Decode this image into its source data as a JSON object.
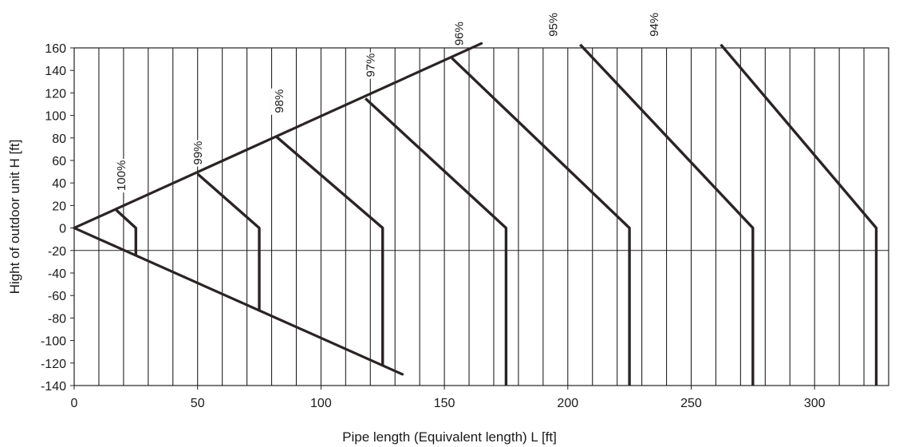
{
  "chart_data": {
    "type": "line",
    "title": "",
    "xlabel": "Pipe length (Equivalent length) L [ft]",
    "ylabel": "Hight of outdoor unit H [ft]",
    "xlim": [
      0,
      330
    ],
    "ylim": [
      -140,
      160
    ],
    "x_ticks": [
      "0",
      "50",
      "100",
      "150",
      "200",
      "250",
      "300"
    ],
    "y_ticks": [
      "160",
      "140",
      "120",
      "100",
      "80",
      "60",
      "40",
      "20",
      "0",
      "-20",
      "-40",
      "-60",
      "-80",
      "-100",
      "-120",
      "-140"
    ],
    "grid": {
      "vertical_every": 10,
      "horizontal_every": 20
    },
    "boundary": {
      "upper": [
        [
          0,
          0
        ],
        [
          165,
          164
        ]
      ],
      "lower": [
        [
          0,
          0
        ],
        [
          133,
          -130
        ]
      ]
    },
    "series": [
      {
        "name": "100%",
        "points": [
          [
            17,
            16
          ],
          [
            25,
            0
          ],
          [
            25,
            -24
          ]
        ]
      },
      {
        "name": "99%",
        "points": [
          [
            50,
            48
          ],
          [
            75,
            0
          ],
          [
            75,
            -74
          ]
        ]
      },
      {
        "name": "98%",
        "points": [
          [
            82,
            81
          ],
          [
            125,
            0
          ],
          [
            125,
            -122
          ]
        ]
      },
      {
        "name": "97%",
        "points": [
          [
            118,
            115
          ],
          [
            175,
            0
          ],
          [
            175,
            -140
          ]
        ]
      },
      {
        "name": "96%",
        "points": [
          [
            153,
            151
          ],
          [
            225,
            0
          ],
          [
            225,
            -140
          ]
        ]
      },
      {
        "name": "95%",
        "points": [
          [
            205,
            163
          ],
          [
            275,
            0
          ],
          [
            275,
            -140
          ]
        ]
      },
      {
        "name": "94%",
        "points": [
          [
            262,
            163
          ],
          [
            325,
            0
          ],
          [
            325,
            -140
          ]
        ]
      }
    ],
    "label_positions": [
      {
        "text": "100%",
        "x": 20,
        "y": 33
      },
      {
        "text": "99%",
        "x": 51,
        "y": 56
      },
      {
        "text": "98%",
        "x": 84,
        "y": 102
      },
      {
        "text": "97%",
        "x": 121,
        "y": 134
      },
      {
        "text": "96%",
        "x": 157,
        "y": 162
      },
      {
        "text": "95%",
        "x": 195,
        "y": 170
      },
      {
        "text": "94%",
        "x": 236,
        "y": 170
      }
    ]
  }
}
